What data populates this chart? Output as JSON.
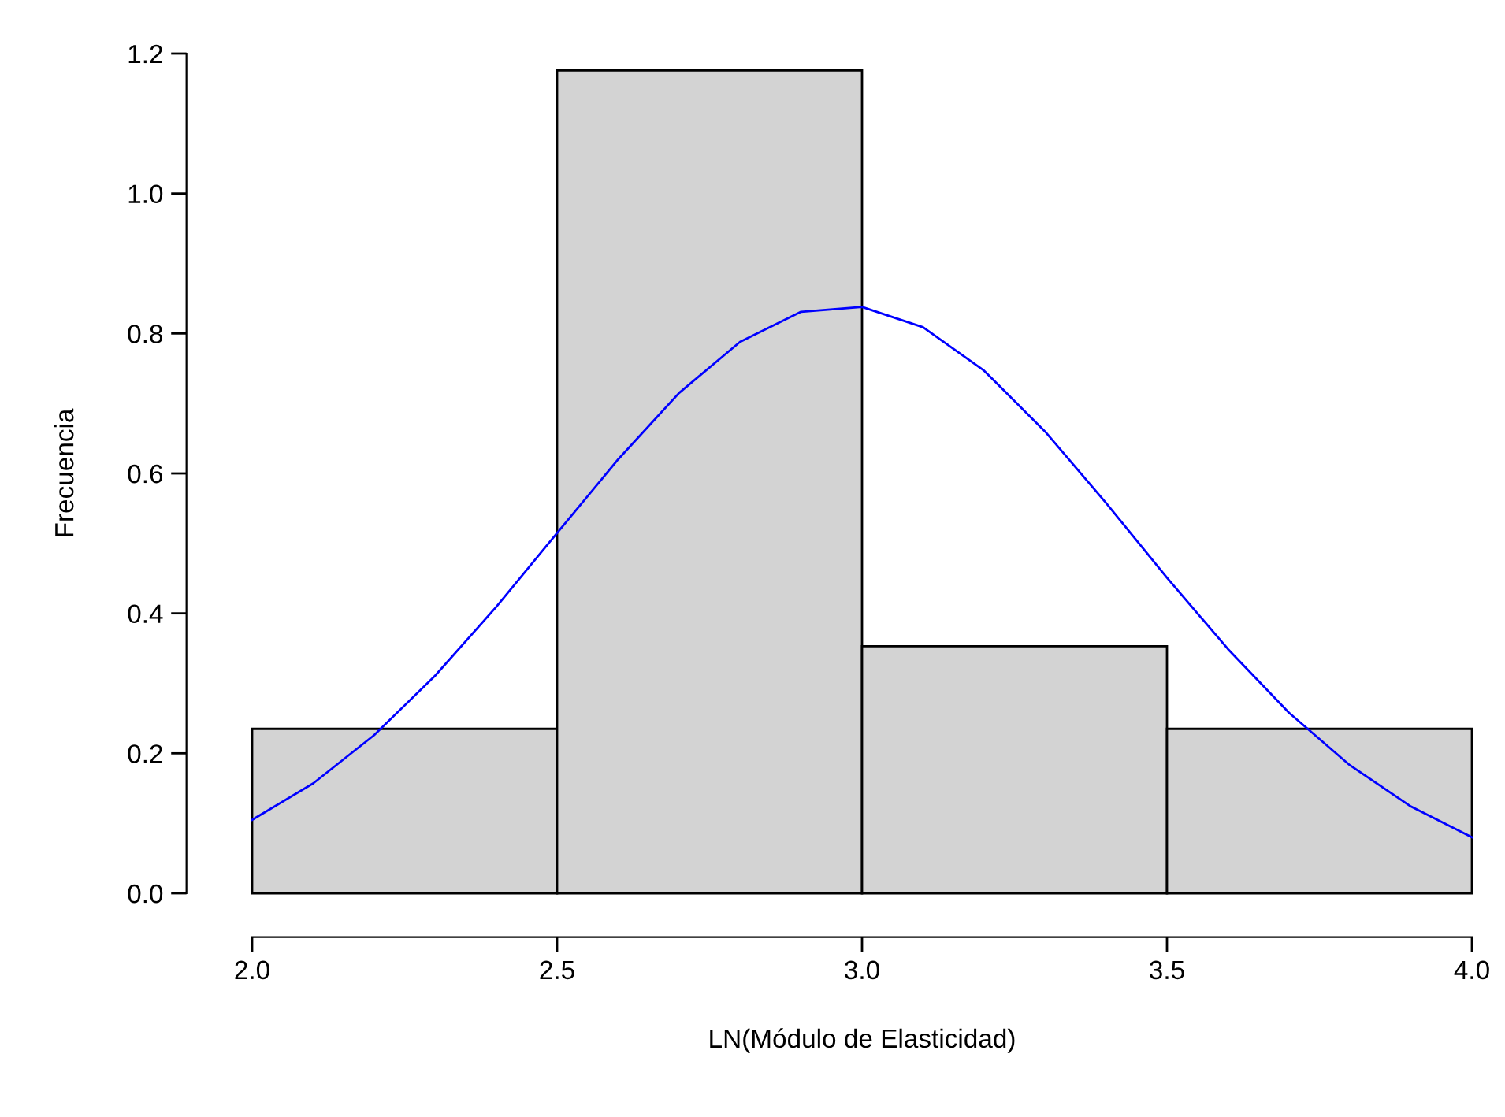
{
  "chart_data": {
    "type": "histogram",
    "xlabel": "LN(Módulo de Elasticidad)",
    "ylabel": "Frecuencia",
    "bins": [
      2.0,
      2.5,
      3.0,
      3.5,
      4.0
    ],
    "series": [
      {
        "color": "#d3d3d3",
        "values": [
          0.235,
          1.176,
          0.353,
          0.235
        ]
      },
      {
        "type": "line",
        "color": "#0000ff",
        "x": [
          2.0,
          2.1,
          2.2,
          2.3,
          2.4,
          2.5,
          2.6,
          2.7,
          2.8,
          2.9,
          3.0,
          3.1,
          3.2,
          3.3,
          3.4,
          3.5,
          3.6,
          3.7,
          3.8,
          3.9,
          4.0
        ],
        "values": [
          0.105,
          0.157,
          0.226,
          0.311,
          0.409,
          0.515,
          0.62,
          0.715,
          0.788,
          0.831,
          0.838,
          0.809,
          0.747,
          0.66,
          0.558,
          0.451,
          0.349,
          0.258,
          0.183,
          0.124,
          0.08
        ]
      }
    ],
    "xlim": [
      2.0,
      4.0
    ],
    "ylim": [
      0.0,
      1.2
    ],
    "xticks": [
      {
        "value": 2.0,
        "label": "2.0"
      },
      {
        "value": 2.5,
        "label": "2.5"
      },
      {
        "value": 3.0,
        "label": "3.0"
      },
      {
        "value": 3.5,
        "label": "3.5"
      },
      {
        "value": 4.0,
        "label": "4.0"
      }
    ],
    "yticks": [
      {
        "value": 0.0,
        "label": "0.0"
      },
      {
        "value": 0.2,
        "label": "0.2"
      },
      {
        "value": 0.4,
        "label": "0.4"
      },
      {
        "value": 0.6,
        "label": "0.6"
      },
      {
        "value": 0.8,
        "label": "0.8"
      },
      {
        "value": 1.0,
        "label": "1.0"
      },
      {
        "value": 1.2,
        "label": "1.2"
      }
    ],
    "grid": false,
    "legend": false
  }
}
